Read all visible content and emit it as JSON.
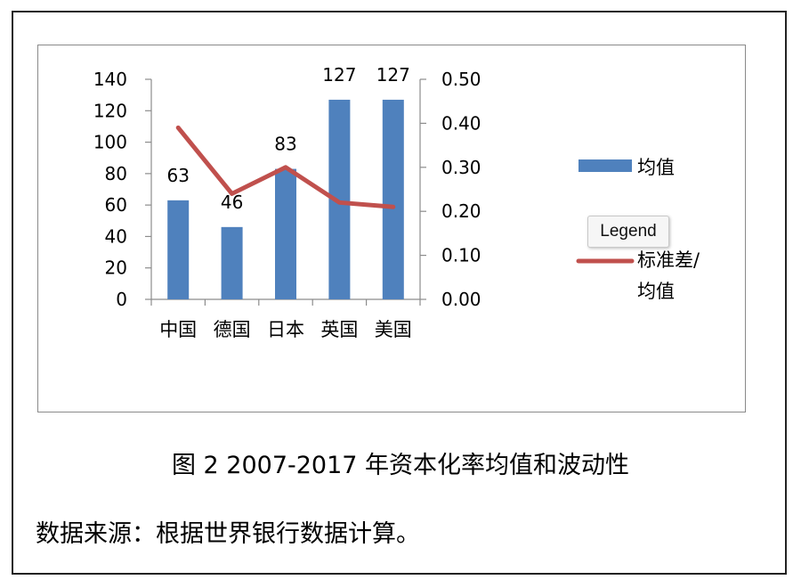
{
  "chart_data": {
    "type": "bar",
    "categories": [
      "中国",
      "德国",
      "日本",
      "英国",
      "美国"
    ],
    "series": [
      {
        "name": "均值",
        "kind": "bar",
        "axis": "left",
        "color": "#4f81bd",
        "values": [
          63,
          46,
          83,
          127,
          127
        ],
        "data_labels": [
          "63",
          "46",
          "83",
          "127",
          "127"
        ]
      },
      {
        "name": "标准差/均值",
        "kind": "line",
        "axis": "right",
        "color": "#c0504d",
        "values": [
          0.39,
          0.24,
          0.3,
          0.22,
          0.21
        ]
      }
    ],
    "y_left": {
      "ticks": [
        "0",
        "20",
        "40",
        "60",
        "80",
        "100",
        "120",
        "140"
      ],
      "ylim": [
        0,
        140
      ]
    },
    "y_right": {
      "ticks": [
        "0.00",
        "0.10",
        "0.20",
        "0.30",
        "0.40",
        "0.50"
      ],
      "ylim": [
        0,
        0.5
      ]
    },
    "legend": {
      "placement": "right",
      "items": [
        "均值",
        "标准差/",
        "均值"
      ]
    },
    "grid": false
  },
  "tooltip": "Legend",
  "caption": "图 2 2007-2017 年资本化率均值和波动性",
  "source": "数据来源：根据世界银行数据计算。"
}
